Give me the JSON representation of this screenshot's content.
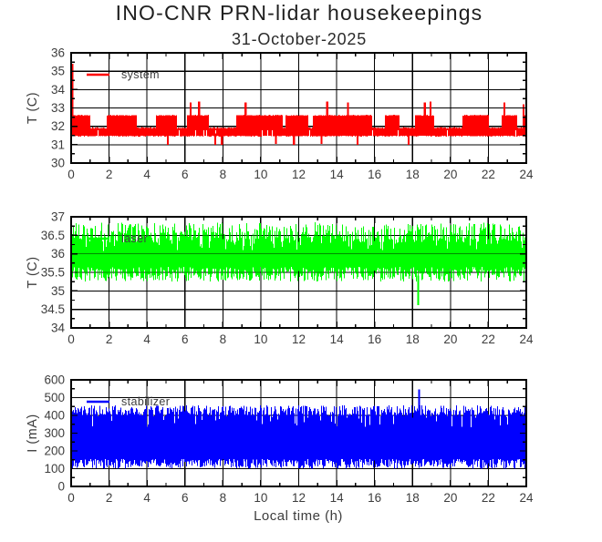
{
  "header": {
    "title": "INO-CNR PRN-lidar housekeepings",
    "subtitle": "31-October-2025"
  },
  "x_axis": {
    "label": "Local time (h)",
    "range": [
      0,
      24
    ],
    "tick_values": [
      0,
      2,
      4,
      6,
      8,
      10,
      12,
      14,
      16,
      18,
      20,
      22,
      24
    ],
    "tick_labels": [
      "0",
      "2",
      "4",
      "6",
      "8",
      "10",
      "12",
      "14",
      "16",
      "18",
      "20",
      "22",
      "24"
    ],
    "minor_interval": 1
  },
  "colors": {
    "axis": "#000000",
    "grid": "#000000",
    "text": "#3d3d3d",
    "system": "#ff0000",
    "laser": "#00ff00",
    "stabilizer": "#0000ff"
  },
  "chart_data": [
    {
      "type": "line",
      "series_name": "system",
      "legend": "system",
      "color": "#ff0000",
      "ylabel": "T (C)",
      "ylim": [
        30,
        36
      ],
      "ytick_values": [
        30,
        31,
        32,
        33,
        34,
        35,
        36
      ],
      "ytick_labels": [
        "30",
        "31",
        "32",
        "33",
        "34",
        "35",
        "36"
      ],
      "yminor_interval": 0.5,
      "grid": true,
      "legend_pos": "upper-left",
      "signal": {
        "kind": "square",
        "band": [
          31.5,
          32.62
        ],
        "high_level": 32.62,
        "low_level": 31.95,
        "base": 31.5,
        "high_fraction": 0.72
      },
      "events": [
        {
          "x": 0.06,
          "y": 35.4
        },
        {
          "x": 6.3,
          "y": 33.3
        },
        {
          "x": 6.75,
          "y": 33.35
        },
        {
          "x": 9.2,
          "y": 33.3
        },
        {
          "x": 13.5,
          "y": 33.35
        },
        {
          "x": 14.6,
          "y": 33.3
        },
        {
          "x": 18.65,
          "y": 33.3
        },
        {
          "x": 18.95,
          "y": 33.35
        },
        {
          "x": 22.85,
          "y": 33.3
        },
        {
          "x": 23.85,
          "y": 33.2
        },
        {
          "x": 5.1,
          "y": 31.0
        },
        {
          "x": 7.6,
          "y": 31.0
        },
        {
          "x": 7.95,
          "y": 31.0
        },
        {
          "x": 10.8,
          "y": 31.05
        },
        {
          "x": 11.75,
          "y": 31.0
        },
        {
          "x": 13.2,
          "y": 31.05
        },
        {
          "x": 15.1,
          "y": 31.0
        },
        {
          "x": 17.8,
          "y": 31.0
        }
      ]
    },
    {
      "type": "line",
      "series_name": "laser",
      "legend": "laser",
      "color": "#00ff00",
      "ylabel": "T (C)",
      "ylim": [
        34,
        37
      ],
      "ytick_values": [
        34,
        34.5,
        35,
        35.5,
        36,
        36.5,
        37
      ],
      "ytick_labels": [
        "34",
        "34.5",
        "35",
        "35.5",
        "36",
        "36.5",
        "37"
      ],
      "yminor_interval": 0.25,
      "grid": true,
      "grid_over_data": [
        35.5,
        36,
        36.5
      ],
      "legend_pos": "upper-left",
      "signal": {
        "kind": "noise",
        "band": [
          35.25,
          36.85
        ],
        "low_base": 35.25,
        "low_jitter": 0.4,
        "high_base": 36.3,
        "high_jitter": 0.55
      },
      "events": [
        {
          "x": 18.3,
          "y": 34.62
        }
      ]
    },
    {
      "type": "line",
      "series_name": "stabilizer",
      "legend": "stabilizer",
      "color": "#0000ff",
      "ylabel": "I (mA)",
      "ylim": [
        0,
        600
      ],
      "ytick_values": [
        0,
        100,
        200,
        300,
        400,
        500,
        600
      ],
      "ytick_labels": [
        "0",
        "100",
        "200",
        "300",
        "400",
        "500",
        "600"
      ],
      "yminor_interval": 50,
      "grid": true,
      "legend_pos": "upper-left",
      "signal": {
        "kind": "noise",
        "band": [
          105,
          455
        ],
        "low_base": 100,
        "low_jitter": 55,
        "high_base": 395,
        "high_jitter": 62
      },
      "events": [
        {
          "x": 18.35,
          "y": 545
        }
      ]
    }
  ]
}
